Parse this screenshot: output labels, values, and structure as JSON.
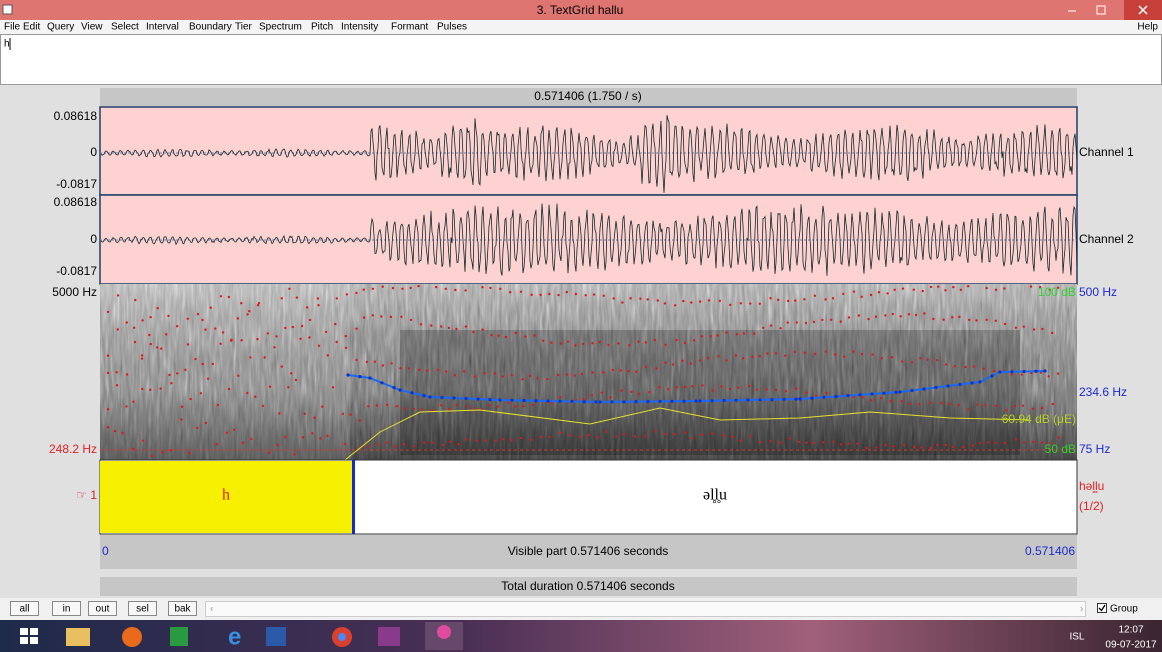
{
  "window": {
    "title": "3. TextGrid hallu"
  },
  "menu": {
    "items": [
      "File",
      "Edit",
      "Query",
      "View",
      "Select",
      "Interval",
      "Boundary",
      "Tier",
      "Spectrum",
      "Pitch",
      "Intensity",
      "Formant",
      "Pulses"
    ],
    "help": "Help"
  },
  "text_field": "h",
  "time_header": "0.571406 (1.750 / s)",
  "channels": [
    {
      "top": "0.08618",
      "zero": "0",
      "bottom": "-0.0817",
      "name": "Channel 1"
    },
    {
      "top": "0.08618",
      "zero": "0",
      "bottom": "-0.0817",
      "name": "Channel 2"
    }
  ],
  "spectrogram": {
    "top": "5000 Hz",
    "cursor": "248.2 Hz",
    "pitch_top": "500 Hz",
    "pitch_value": "234.6 Hz",
    "pitch_bottom": "75 Hz",
    "intensity_top": "100 dB",
    "intensity_value": "60.94 dB (μE)",
    "intensity_bottom": "50 dB"
  },
  "tier": {
    "label": "☞ 1",
    "intervals": [
      "h",
      "əl̥l̥u"
    ],
    "name": "həl̥l̥u",
    "count": "(1/2)"
  },
  "visible": {
    "start": "0",
    "text": "Visible part 0.571406 seconds",
    "end": "0.571406"
  },
  "total": "Total duration 0.571406 seconds",
  "buttons": [
    "all",
    "in",
    "out",
    "sel",
    "bak"
  ],
  "group": "Group",
  "taskbar": {
    "language": "ISL",
    "time": "12:07",
    "date": "09-07-2017"
  }
}
